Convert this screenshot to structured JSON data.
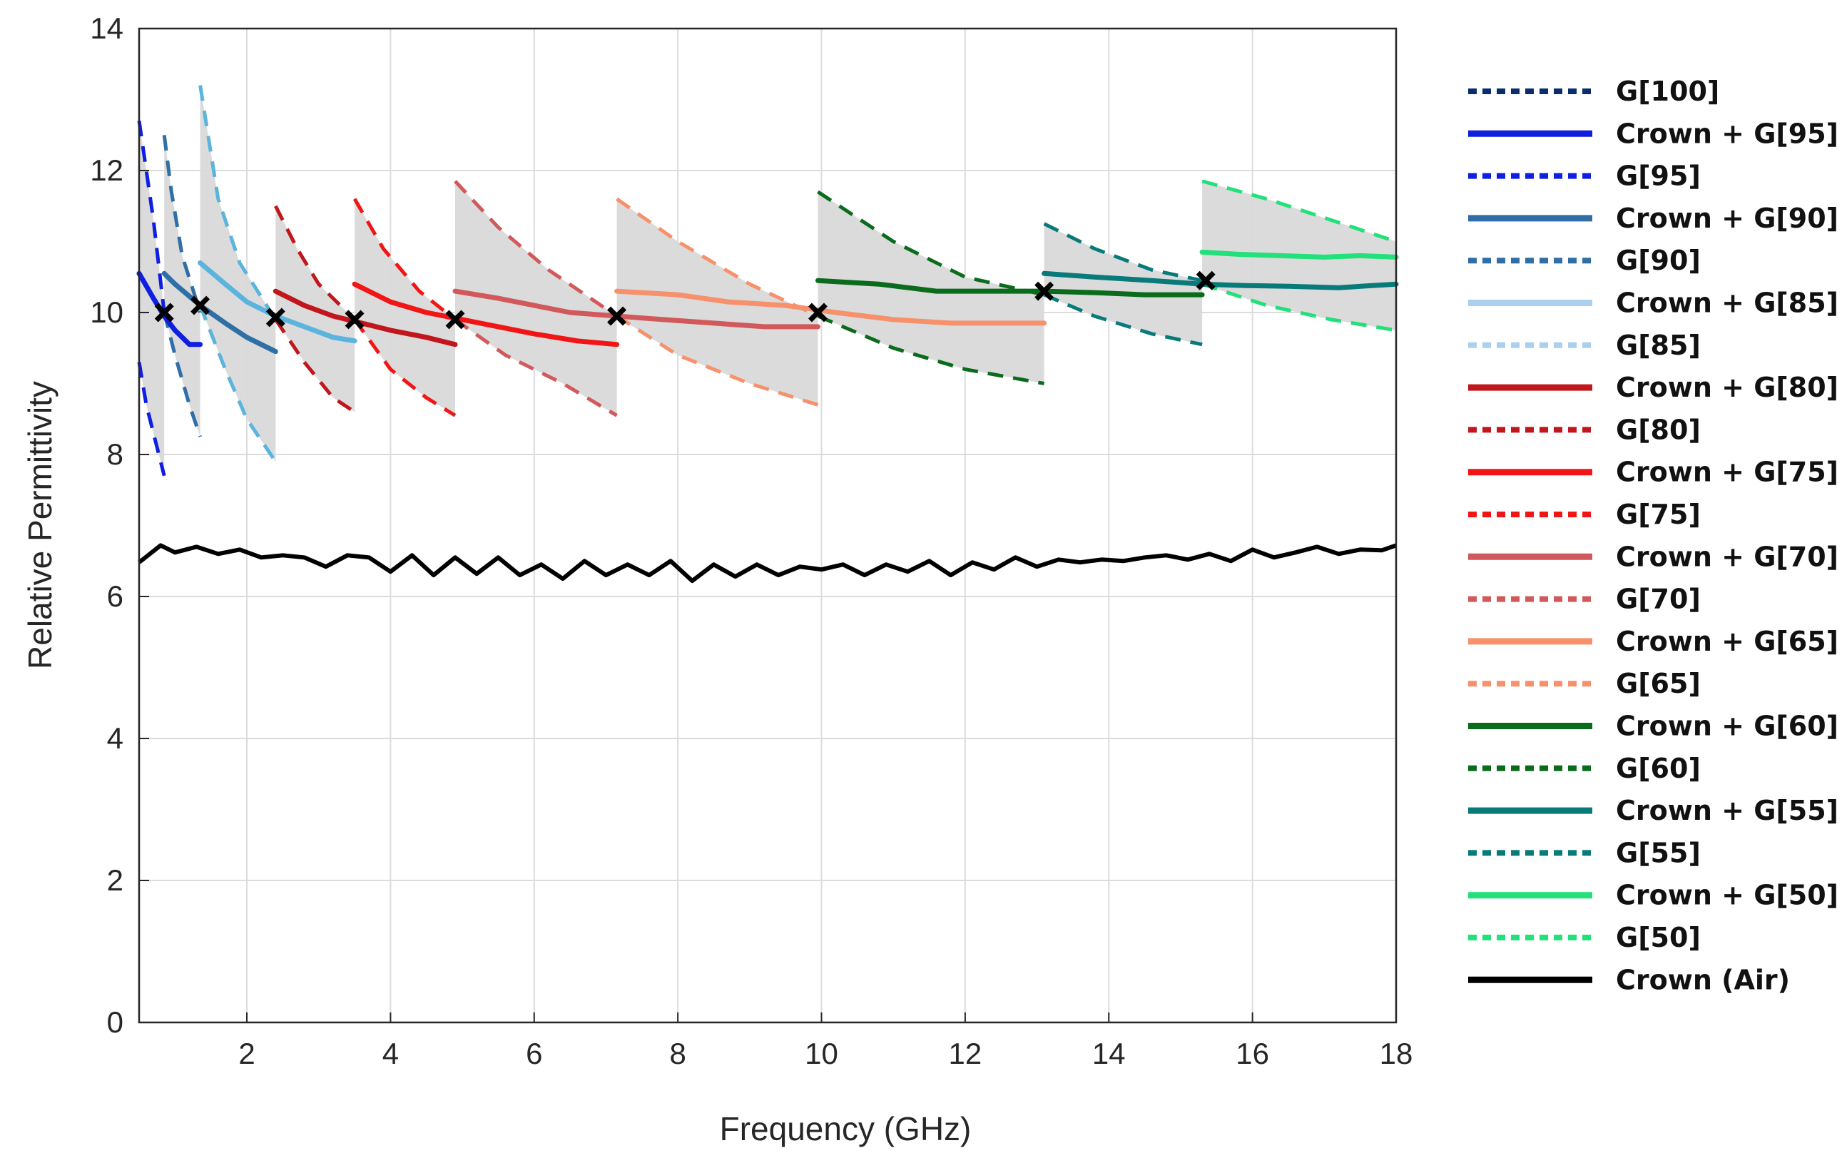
{
  "chart_data": {
    "type": "line",
    "title": "",
    "xlabel": "Frequency (GHz)",
    "ylabel": "Relative Permittivity",
    "xlim": [
      0.5,
      18
    ],
    "ylim": [
      0,
      14
    ],
    "xticks": [
      2,
      4,
      6,
      8,
      10,
      12,
      14,
      16,
      18
    ],
    "yticks": [
      0,
      2,
      4,
      6,
      8,
      10,
      12,
      14
    ],
    "grid": true,
    "legend_position": "outside-right",
    "colors": {
      "G100": "#0a2e6b",
      "G95": "#0f1fe0",
      "G90": "#2f6fa6",
      "G85": "#5ab4de",
      "G80": "#c0161c",
      "G75": "#f21515",
      "G70": "#d2595b",
      "G65": "#f7916c",
      "G60": "#0b6b1c",
      "G55": "#087a7a",
      "G50": "#22e07a",
      "air": "#000000",
      "band": "#d9d9d9",
      "marker": "#000000"
    },
    "legend": [
      {
        "label": "G[100]",
        "style": "dotted",
        "color": "#0a2e6b"
      },
      {
        "label": "Crown + G[95]",
        "style": "solid",
        "color": "#0f1fe0"
      },
      {
        "label": "G[95]",
        "style": "dotted",
        "color": "#0f1fe0"
      },
      {
        "label": "Crown + G[90]",
        "style": "solid",
        "color": "#2f6fa6"
      },
      {
        "label": "G[90]",
        "style": "dotted",
        "color": "#2f6fa6"
      },
      {
        "label": "Crown + G[85]",
        "style": "solid",
        "color": "#aad0ee"
      },
      {
        "label": "G[85]",
        "style": "dotted",
        "color": "#aad0ee"
      },
      {
        "label": "Crown + G[80]",
        "style": "solid",
        "color": "#c0161c"
      },
      {
        "label": "G[80]",
        "style": "dotted",
        "color": "#c0161c"
      },
      {
        "label": "Crown + G[75]",
        "style": "solid",
        "color": "#f21515"
      },
      {
        "label": "G[75]",
        "style": "dotted",
        "color": "#f21515"
      },
      {
        "label": "Crown + G[70]",
        "style": "solid",
        "color": "#d2595b"
      },
      {
        "label": "G[70]",
        "style": "dotted",
        "color": "#d2595b"
      },
      {
        "label": "Crown + G[65]",
        "style": "solid",
        "color": "#f7916c"
      },
      {
        "label": "G[65]",
        "style": "dotted",
        "color": "#f7916c"
      },
      {
        "label": "Crown + G[60]",
        "style": "solid",
        "color": "#0b6b1c"
      },
      {
        "label": "G[60]",
        "style": "dotted",
        "color": "#0b6b1c"
      },
      {
        "label": "Crown + G[55]",
        "style": "solid",
        "color": "#087a7a"
      },
      {
        "label": "G[55]",
        "style": "dotted",
        "color": "#087a7a"
      },
      {
        "label": "Crown + G[50]",
        "style": "solid",
        "color": "#22e07a"
      },
      {
        "label": "G[50]",
        "style": "dotted",
        "color": "#22e07a"
      },
      {
        "label": "Crown (Air)",
        "style": "solid",
        "color": "#000000"
      }
    ],
    "series": [
      {
        "name": "G[95]",
        "kind": "bound",
        "color": "#0f1fe0",
        "upper": {
          "x": [
            0.5,
            0.6,
            0.7,
            0.85
          ],
          "y": [
            12.7,
            12.0,
            11.3,
            10.0
          ]
        },
        "lower": {
          "x": [
            0.5,
            0.6,
            0.7,
            0.85
          ],
          "y": [
            9.3,
            8.7,
            8.3,
            7.7
          ]
        }
      },
      {
        "name": "Crown + G[95]",
        "kind": "crown",
        "color": "#0f1fe0",
        "x": [
          0.5,
          0.7,
          0.85,
          1.0,
          1.2,
          1.35
        ],
        "y": [
          10.55,
          10.2,
          9.95,
          9.75,
          9.55,
          9.55
        ]
      },
      {
        "name": "G[90]",
        "kind": "bound",
        "color": "#2f6fa6",
        "upper": {
          "x": [
            0.85,
            0.95,
            1.1,
            1.35
          ],
          "y": [
            12.5,
            11.7,
            10.8,
            10.0
          ]
        },
        "lower": {
          "x": [
            0.85,
            1.0,
            1.2,
            1.35
          ],
          "y": [
            10.0,
            9.4,
            8.7,
            8.25
          ]
        }
      },
      {
        "name": "Crown + G[90]",
        "kind": "crown",
        "color": "#2f6fa6",
        "x": [
          0.85,
          1.0,
          1.35,
          1.7,
          2.0,
          2.4
        ],
        "y": [
          10.55,
          10.4,
          10.1,
          9.85,
          9.65,
          9.45
        ]
      },
      {
        "name": "G[85]",
        "kind": "bound",
        "color": "#5ab4de",
        "upper": {
          "x": [
            1.35,
            1.6,
            1.9,
            2.4
          ],
          "y": [
            13.2,
            11.6,
            10.7,
            9.9
          ]
        },
        "lower": {
          "x": [
            1.35,
            1.7,
            2.0,
            2.4
          ],
          "y": [
            10.1,
            9.2,
            8.5,
            7.9
          ]
        }
      },
      {
        "name": "Crown + G[85]",
        "kind": "crown",
        "color": "#5ab4de",
        "x": [
          1.35,
          1.7,
          2.0,
          2.4,
          2.8,
          3.2,
          3.5
        ],
        "y": [
          10.7,
          10.4,
          10.15,
          9.95,
          9.8,
          9.65,
          9.6
        ]
      },
      {
        "name": "G[80]",
        "kind": "bound",
        "color": "#c0161c",
        "upper": {
          "x": [
            2.4,
            2.7,
            3.0,
            3.5
          ],
          "y": [
            11.5,
            10.9,
            10.4,
            9.9
          ]
        },
        "lower": {
          "x": [
            2.4,
            2.8,
            3.2,
            3.5
          ],
          "y": [
            9.9,
            9.3,
            8.8,
            8.6
          ]
        }
      },
      {
        "name": "Crown + G[80]",
        "kind": "crown",
        "color": "#c0161c",
        "x": [
          2.4,
          2.8,
          3.2,
          3.6,
          4.0,
          4.5,
          4.9
        ],
        "y": [
          10.3,
          10.1,
          9.95,
          9.85,
          9.75,
          9.65,
          9.55
        ]
      },
      {
        "name": "G[75]",
        "kind": "bound",
        "color": "#f21515",
        "upper": {
          "x": [
            3.5,
            3.9,
            4.4,
            4.9
          ],
          "y": [
            11.6,
            10.9,
            10.3,
            9.9
          ]
        },
        "lower": {
          "x": [
            3.5,
            4.0,
            4.5,
            4.9
          ],
          "y": [
            9.9,
            9.2,
            8.8,
            8.55
          ]
        }
      },
      {
        "name": "Crown + G[75]",
        "kind": "crown",
        "color": "#f21515",
        "x": [
          3.5,
          4.0,
          4.5,
          5.0,
          5.5,
          6.0,
          6.6,
          7.15
        ],
        "y": [
          10.4,
          10.15,
          10.0,
          9.9,
          9.8,
          9.7,
          9.6,
          9.55
        ]
      },
      {
        "name": "G[70]",
        "kind": "bound",
        "color": "#d2595b",
        "upper": {
          "x": [
            4.9,
            5.5,
            6.2,
            7.15
          ],
          "y": [
            11.85,
            11.2,
            10.6,
            9.95
          ]
        },
        "lower": {
          "x": [
            4.9,
            5.6,
            6.4,
            7.15
          ],
          "y": [
            9.9,
            9.4,
            9.0,
            8.55
          ]
        }
      },
      {
        "name": "Crown + G[70]",
        "kind": "crown",
        "color": "#d2595b",
        "x": [
          4.9,
          5.5,
          6.0,
          6.5,
          7.15,
          7.8,
          8.5,
          9.2,
          9.95
        ],
        "y": [
          10.3,
          10.2,
          10.1,
          10.0,
          9.95,
          9.9,
          9.85,
          9.8,
          9.8
        ]
      },
      {
        "name": "G[65]",
        "kind": "bound",
        "color": "#f7916c",
        "upper": {
          "x": [
            7.15,
            8.0,
            9.0,
            9.95
          ],
          "y": [
            11.6,
            11.0,
            10.4,
            9.95
          ]
        },
        "lower": {
          "x": [
            7.15,
            8.0,
            9.0,
            9.95
          ],
          "y": [
            9.95,
            9.4,
            9.0,
            8.7
          ]
        }
      },
      {
        "name": "Crown + G[65]",
        "kind": "crown",
        "color": "#f7916c",
        "x": [
          7.15,
          8.0,
          8.7,
          9.5,
          10.2,
          11.0,
          11.8,
          12.5,
          13.1
        ],
        "y": [
          10.3,
          10.25,
          10.15,
          10.1,
          10.0,
          9.9,
          9.85,
          9.85,
          9.85
        ]
      },
      {
        "name": "G[60]",
        "kind": "bound",
        "color": "#0b6b1c",
        "upper": {
          "x": [
            9.95,
            11.0,
            12.0,
            13.1
          ],
          "y": [
            11.7,
            11.0,
            10.5,
            10.25
          ]
        },
        "lower": {
          "x": [
            9.95,
            11.0,
            12.0,
            13.1
          ],
          "y": [
            9.95,
            9.5,
            9.2,
            9.0
          ]
        }
      },
      {
        "name": "Crown + G[60]",
        "kind": "crown",
        "color": "#0b6b1c",
        "x": [
          9.95,
          10.8,
          11.6,
          12.4,
          13.1,
          13.8,
          14.5,
          15.3
        ],
        "y": [
          10.45,
          10.4,
          10.3,
          10.3,
          10.3,
          10.28,
          10.25,
          10.25
        ]
      },
      {
        "name": "G[55]",
        "kind": "bound",
        "color": "#087a7a",
        "upper": {
          "x": [
            13.1,
            13.8,
            14.6,
            15.3
          ],
          "y": [
            11.25,
            10.9,
            10.6,
            10.45
          ]
        },
        "lower": {
          "x": [
            13.1,
            13.8,
            14.6,
            15.3
          ],
          "y": [
            10.25,
            9.95,
            9.7,
            9.55
          ]
        }
      },
      {
        "name": "Crown + G[55]",
        "kind": "crown",
        "color": "#087a7a",
        "x": [
          13.1,
          13.8,
          14.6,
          15.3,
          15.9,
          16.5,
          17.2,
          18.0
        ],
        "y": [
          10.55,
          10.5,
          10.45,
          10.4,
          10.38,
          10.37,
          10.35,
          10.4
        ]
      },
      {
        "name": "G[50]",
        "kind": "bound",
        "color": "#22e07a",
        "upper": {
          "x": [
            15.3,
            16.2,
            17.1,
            18.0
          ],
          "y": [
            11.85,
            11.6,
            11.3,
            11.0
          ]
        },
        "lower": {
          "x": [
            15.3,
            16.2,
            17.1,
            18.0
          ],
          "y": [
            10.4,
            10.1,
            9.9,
            9.75
          ]
        }
      },
      {
        "name": "Crown + G[50]",
        "kind": "crown",
        "color": "#22e07a",
        "x": [
          15.3,
          15.8,
          16.4,
          17.0,
          17.5,
          18.0
        ],
        "y": [
          10.85,
          10.82,
          10.8,
          10.78,
          10.8,
          10.78
        ]
      },
      {
        "name": "Crown (Air)",
        "kind": "air",
        "color": "#000000",
        "x": [
          0.5,
          0.8,
          1.0,
          1.3,
          1.6,
          1.9,
          2.2,
          2.5,
          2.8,
          3.1,
          3.4,
          3.7,
          4.0,
          4.3,
          4.6,
          4.9,
          5.2,
          5.5,
          5.8,
          6.1,
          6.4,
          6.7,
          7.0,
          7.3,
          7.6,
          7.9,
          8.2,
          8.5,
          8.8,
          9.1,
          9.4,
          9.7,
          10.0,
          10.3,
          10.6,
          10.9,
          11.2,
          11.5,
          11.8,
          12.1,
          12.4,
          12.7,
          13.0,
          13.3,
          13.6,
          13.9,
          14.2,
          14.5,
          14.8,
          15.1,
          15.4,
          15.7,
          16.0,
          16.3,
          16.6,
          16.9,
          17.2,
          17.5,
          17.8,
          18.0
        ],
        "y": [
          6.48,
          6.72,
          6.62,
          6.7,
          6.6,
          6.66,
          6.55,
          6.58,
          6.55,
          6.42,
          6.58,
          6.55,
          6.35,
          6.58,
          6.3,
          6.55,
          6.32,
          6.55,
          6.3,
          6.45,
          6.25,
          6.5,
          6.3,
          6.45,
          6.3,
          6.5,
          6.22,
          6.45,
          6.28,
          6.45,
          6.3,
          6.42,
          6.38,
          6.45,
          6.3,
          6.45,
          6.35,
          6.5,
          6.3,
          6.48,
          6.38,
          6.55,
          6.42,
          6.52,
          6.48,
          6.52,
          6.5,
          6.55,
          6.58,
          6.52,
          6.6,
          6.5,
          6.66,
          6.55,
          6.62,
          6.7,
          6.6,
          6.66,
          6.65,
          6.72
        ]
      }
    ],
    "crossover_markers": {
      "x": [
        0.85,
        1.35,
        2.4,
        3.5,
        4.9,
        7.15,
        9.95,
        13.1,
        15.35
      ],
      "y": [
        10.0,
        10.1,
        9.93,
        9.9,
        9.9,
        9.95,
        10.0,
        10.3,
        10.45
      ]
    }
  }
}
